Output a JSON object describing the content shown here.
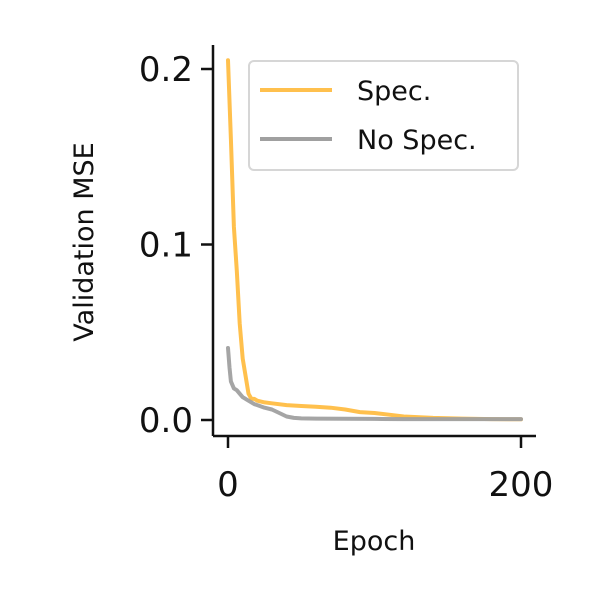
{
  "chart_data": {
    "type": "line",
    "title": "",
    "xlabel": "Epoch",
    "ylabel": "Validation MSE",
    "xlim": [
      0,
      200
    ],
    "ylim": [
      0,
      0.2
    ],
    "xticks": [
      0,
      200
    ],
    "xtick_labels": [
      "0",
      "200"
    ],
    "yticks": [
      0.0,
      0.1,
      0.2
    ],
    "ytick_labels": [
      "0.0",
      "0.1",
      "0.2"
    ],
    "grid": false,
    "legend_position": "top-right",
    "series": [
      {
        "name": "Spec.",
        "color": "#FFC04D",
        "x": [
          0,
          2,
          4,
          6,
          8,
          10,
          12,
          14,
          16,
          18,
          20,
          25,
          30,
          40,
          50,
          60,
          70,
          80,
          90,
          100,
          110,
          120,
          140,
          160,
          180,
          200
        ],
        "y": [
          0.205,
          0.16,
          0.11,
          0.085,
          0.055,
          0.035,
          0.025,
          0.015,
          0.012,
          0.012,
          0.011,
          0.01,
          0.0095,
          0.0085,
          0.008,
          0.0075,
          0.007,
          0.006,
          0.0045,
          0.004,
          0.003,
          0.002,
          0.0012,
          0.0008,
          0.0005,
          0.0004
        ]
      },
      {
        "name": "No Spec.",
        "color": "#A0A0A0",
        "x": [
          0,
          1,
          2,
          4,
          6,
          8,
          10,
          12,
          14,
          16,
          18,
          20,
          25,
          30,
          35,
          40,
          45,
          50,
          60,
          80,
          100,
          120,
          150,
          180,
          200
        ],
        "y": [
          0.041,
          0.03,
          0.022,
          0.018,
          0.017,
          0.015,
          0.013,
          0.012,
          0.011,
          0.01,
          0.009,
          0.0085,
          0.007,
          0.006,
          0.004,
          0.002,
          0.0012,
          0.0009,
          0.0008,
          0.0007,
          0.0006,
          0.0005,
          0.0005,
          0.0005,
          0.0005
        ]
      }
    ]
  }
}
